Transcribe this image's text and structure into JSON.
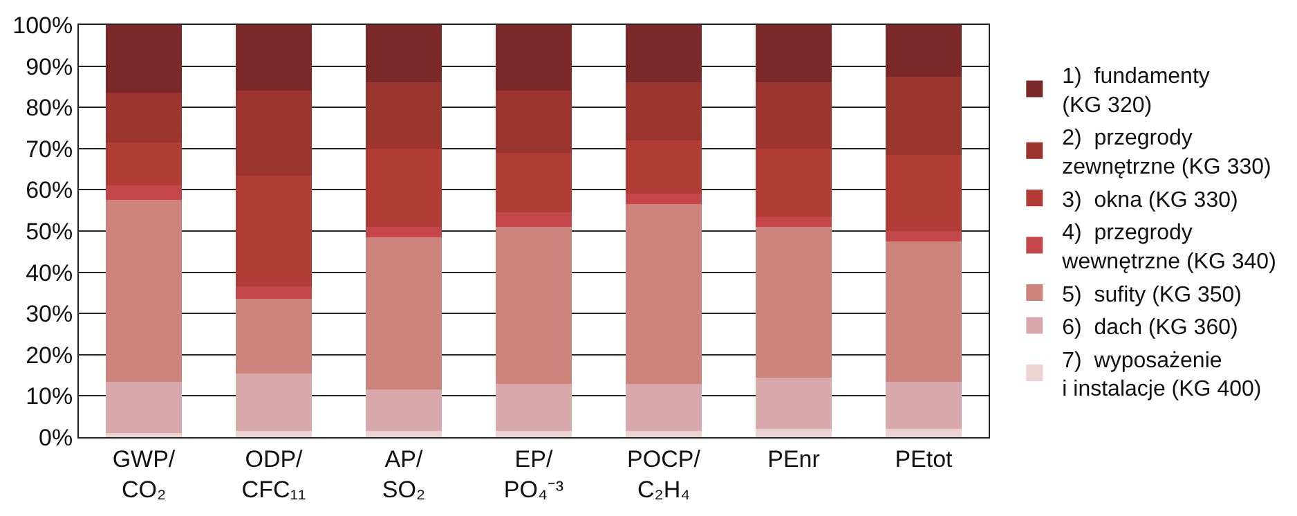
{
  "chart_data": {
    "type": "bar",
    "stacked": true,
    "categories": [
      "GWP/\nCO₂",
      "ODP/\nCFC₁₁",
      "AP/\nSO₂",
      "EP/\nPO₄⁻³",
      "POCP/\nC₂H₄",
      "PEnr",
      "PEtot"
    ],
    "series": [
      {
        "name": "7)  wyposażenie\ni instalacje (KG 400)",
        "color": "#ecd2d0",
        "values": [
          1,
          1.5,
          1.5,
          1.5,
          1.5,
          2,
          2
        ]
      },
      {
        "name": "6)  dach (KG 360)",
        "color": "#d9a8ab",
        "values": [
          12.5,
          14,
          10,
          11.5,
          11.5,
          12.5,
          11.5
        ]
      },
      {
        "name": "5)  sufity (KG 350)",
        "color": "#cc837b",
        "values": [
          44,
          18,
          37,
          38,
          43.5,
          36.5,
          34
        ]
      },
      {
        "name": "4)  przegrody\nwewnętrzne (KG 340)",
        "color": "#c4464a",
        "values": [
          3.5,
          3,
          2.5,
          3.5,
          2.5,
          2.5,
          2.5
        ]
      },
      {
        "name": "3)  okna (KG 330)",
        "color": "#b03c34",
        "values": [
          10.5,
          27,
          19,
          14.5,
          13,
          16.5,
          18.5
        ]
      },
      {
        "name": "2)  przegrody\nzewnętrzne (KG 330)",
        "color": "#9b332e",
        "values": [
          12,
          20.5,
          16,
          15,
          14,
          16,
          19
        ]
      },
      {
        "name": "1)  fundamenty\n(KG 320)",
        "color": "#7b2828",
        "values": [
          16.5,
          16,
          14,
          16,
          14,
          14,
          12.5
        ]
      }
    ],
    "ylim": [
      0,
      100
    ],
    "yticks": [
      {
        "value": 0,
        "label": "0%"
      },
      {
        "value": 10,
        "label": "10%"
      },
      {
        "value": 20,
        "label": "20%"
      },
      {
        "value": 30,
        "label": "30%"
      },
      {
        "value": 40,
        "label": "40%"
      },
      {
        "value": 50,
        "label": "50%"
      },
      {
        "value": 60,
        "label": "60%"
      },
      {
        "value": 70,
        "label": "70%"
      },
      {
        "value": 80,
        "label": "80%"
      },
      {
        "value": 90,
        "label": "90%"
      },
      {
        "value": 100,
        "label": "100%"
      }
    ],
    "grid": "y",
    "legend": "right"
  }
}
